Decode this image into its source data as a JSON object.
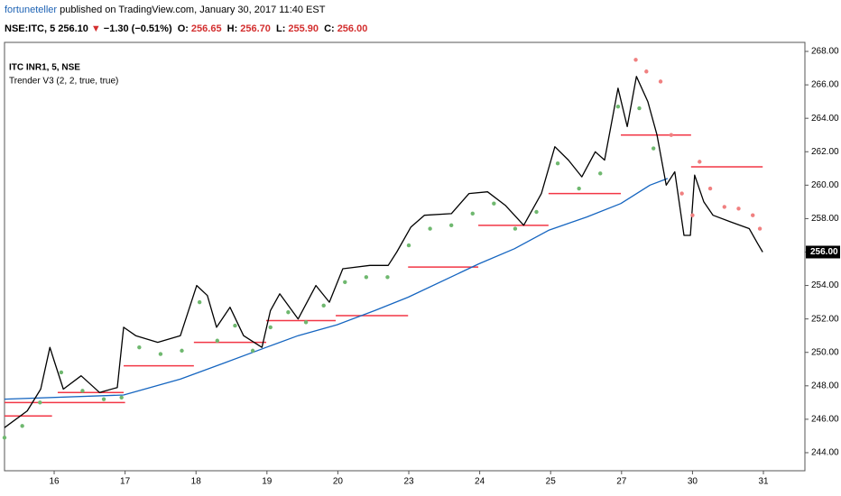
{
  "header": {
    "author": "fortuneteller",
    "published": "published on TradingView.com, January 30, 2017 11:40 EST",
    "symbol": "NSE:ITC, 5",
    "last": "256.10",
    "arrow": "▼",
    "change": "−1.30 (−0.51%)",
    "ohlc": [
      {
        "label": "O:",
        "value": "256.65"
      },
      {
        "label": "H:",
        "value": "256.70"
      },
      {
        "label": "L:",
        "value": "255.90"
      },
      {
        "label": "C:",
        "value": "256.00"
      }
    ]
  },
  "chart_data": {
    "type": "line",
    "title": "ITC INR1, 5, NSE",
    "subtitle": "Trender V3 (2, 2, true, true)",
    "xlim": [
      0.3,
      11.585
    ],
    "ylim": [
      242.92,
      268.54
    ],
    "grid": false,
    "xticks": [
      {
        "value": 1,
        "label": "16"
      },
      {
        "value": 2,
        "label": "17"
      },
      {
        "value": 3,
        "label": "18"
      },
      {
        "value": 4,
        "label": "19"
      },
      {
        "value": 5,
        "label": "20"
      },
      {
        "value": 6,
        "label": "23"
      },
      {
        "value": 7,
        "label": "24"
      },
      {
        "value": 8,
        "label": "25"
      },
      {
        "value": 9,
        "label": "27"
      },
      {
        "value": 10,
        "label": "30"
      },
      {
        "value": 11,
        "label": "31"
      }
    ],
    "yticks": [
      {
        "value": 244,
        "label": "244.00"
      },
      {
        "value": 246,
        "label": "246.00"
      },
      {
        "value": 248,
        "label": "248.00"
      },
      {
        "value": 250,
        "label": "250.00"
      },
      {
        "value": 252,
        "label": "252.00"
      },
      {
        "value": 254,
        "label": "254.00"
      },
      {
        "value": 256,
        "label": "256.00"
      },
      {
        "value": 258,
        "label": "258.00"
      },
      {
        "value": 260,
        "label": "260.00"
      },
      {
        "value": 262,
        "label": "262.00"
      },
      {
        "value": 264,
        "label": "264.00"
      },
      {
        "value": 266,
        "label": "266.00"
      },
      {
        "value": 268,
        "label": "268.00"
      }
    ],
    "last_price": {
      "value": 256,
      "label": "256.00"
    },
    "series": [
      {
        "style": "line",
        "color": "#1565c0",
        "x": [
          0.3,
          1.98,
          2.78,
          3.42,
          3.99,
          4.44,
          4.99,
          5.52,
          5.99,
          6.99,
          7.49,
          7.97,
          8.51,
          8.99,
          9.4,
          9.65
        ],
        "values": [
          247.2,
          247.45,
          248.4,
          249.4,
          250.3,
          251.0,
          251.65,
          252.5,
          253.3,
          255.3,
          256.2,
          257.3,
          258.1,
          258.9,
          260.0,
          260.4
        ]
      },
      {
        "style": "line",
        "color": "#000000",
        "x": [
          0.3,
          0.62,
          0.81,
          0.94,
          1.0,
          1.13,
          1.38,
          1.64,
          1.89,
          1.98,
          2.15,
          2.46,
          2.78,
          3.01,
          3.16,
          3.29,
          3.48,
          3.67,
          3.93,
          4.05,
          4.18,
          4.44,
          4.69,
          4.88,
          5.07,
          5.45,
          5.71,
          5.83,
          6.03,
          6.22,
          6.6,
          6.85,
          7.11,
          7.36,
          7.62,
          7.87,
          8.06,
          8.25,
          8.44,
          8.63,
          8.76,
          8.95,
          9.08,
          9.21,
          9.37,
          9.5,
          9.63,
          9.75,
          9.88,
          9.97,
          10.03,
          10.16,
          10.29,
          10.54,
          10.8,
          10.92,
          10.99
        ],
        "values": [
          245.5,
          246.5,
          247.8,
          250.3,
          249.5,
          247.8,
          248.6,
          247.6,
          247.9,
          251.5,
          251.0,
          250.6,
          251.0,
          254.0,
          253.4,
          251.5,
          252.7,
          251.0,
          250.3,
          252.5,
          253.5,
          252.0,
          254.0,
          253.0,
          255.0,
          255.2,
          255.2,
          256.0,
          257.5,
          258.2,
          258.3,
          259.5,
          259.6,
          258.8,
          257.6,
          259.5,
          262.3,
          261.5,
          260.5,
          262.0,
          261.5,
          265.8,
          263.5,
          266.5,
          265.0,
          263.0,
          260.0,
          260.8,
          257.0,
          257.0,
          260.6,
          259.0,
          258.2,
          257.8,
          257.4,
          256.5,
          256.0
        ]
      },
      {
        "style": "dots",
        "color": "#6fb86f",
        "x": [
          0.3,
          0.55,
          0.8,
          1.1,
          1.4,
          1.7,
          1.95,
          2.2,
          2.5,
          2.8,
          3.05,
          3.3,
          3.55,
          3.8,
          4.05,
          4.3,
          4.55,
          4.8,
          5.1,
          5.4,
          5.7,
          6.0,
          6.3,
          6.6,
          6.9,
          7.2,
          7.5,
          7.8,
          8.1,
          8.4,
          8.7,
          8.95,
          9.25,
          9.45
        ],
        "values": [
          244.9,
          245.6,
          247.0,
          248.8,
          247.7,
          247.2,
          247.3,
          250.3,
          249.9,
          250.1,
          253.0,
          250.7,
          251.6,
          250.1,
          251.5,
          252.4,
          251.8,
          252.8,
          254.2,
          254.5,
          254.5,
          256.4,
          257.4,
          257.6,
          258.3,
          258.9,
          257.4,
          258.4,
          261.3,
          259.8,
          260.7,
          264.7,
          264.6,
          262.2
        ]
      },
      {
        "style": "dots",
        "color": "#f08080",
        "x": [
          9.2,
          9.35,
          9.55,
          9.7,
          9.85,
          10.0,
          10.1,
          10.25,
          10.45,
          10.65,
          10.85,
          10.95
        ],
        "values": [
          267.5,
          266.8,
          266.2,
          263.0,
          259.5,
          258.2,
          261.4,
          259.8,
          258.7,
          258.6,
          258.2,
          257.4
        ]
      }
    ],
    "level_color": "#f23645",
    "levels": [
      {
        "x": [
          0.3,
          2.0
        ],
        "value": 247.0
      },
      {
        "x": [
          0.3,
          0.97
        ],
        "value": 246.2
      },
      {
        "x": [
          1.05,
          1.98
        ],
        "value": 247.6
      },
      {
        "x": [
          1.98,
          2.97
        ],
        "value": 249.2
      },
      {
        "x": [
          2.97,
          3.99
        ],
        "value": 250.6
      },
      {
        "x": [
          3.99,
          4.97
        ],
        "value": 251.9
      },
      {
        "x": [
          4.97,
          5.99
        ],
        "value": 252.2
      },
      {
        "x": [
          5.99,
          6.98
        ],
        "value": 255.1
      },
      {
        "x": [
          6.98,
          7.97
        ],
        "value": 257.6
      },
      {
        "x": [
          7.97,
          8.99
        ],
        "value": 259.5
      },
      {
        "x": [
          8.99,
          9.98
        ],
        "value": 263.0
      },
      {
        "x": [
          9.98,
          10.99
        ],
        "value": 261.1
      }
    ]
  }
}
